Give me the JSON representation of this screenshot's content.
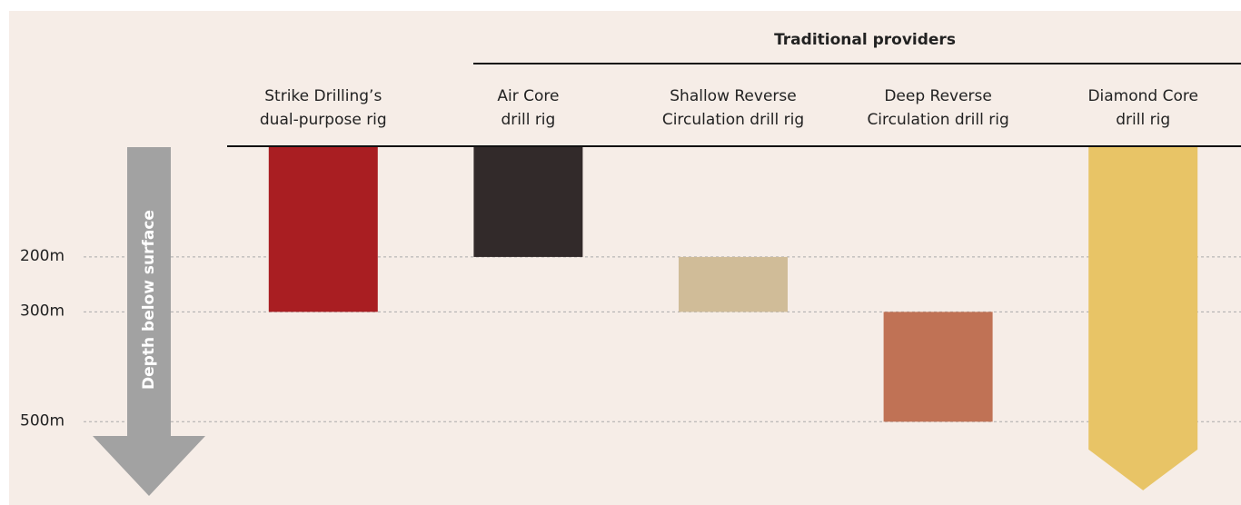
{
  "chart_data": {
    "type": "floating-bar",
    "header": "Traditional providers",
    "y_label": "Depth below surface",
    "categories": [
      [
        "Strike Drilling’s",
        "dual-purpose rig"
      ],
      [
        "Air Core",
        "drill rig"
      ],
      [
        "Shallow Reverse",
        "Circulation drill rig"
      ],
      [
        "Deep Reverse",
        "Circulation drill rig"
      ],
      [
        "Diamond Core",
        "drill rig"
      ]
    ],
    "values": [
      [
        0,
        300
      ],
      [
        0,
        200
      ],
      [
        200,
        300
      ],
      [
        300,
        500
      ],
      [
        0,
        625
      ]
    ],
    "colors": [
      "#a91e22",
      "#322a2a",
      "#d0bc98",
      "#c07255",
      "#e8c466"
    ],
    "open_ended": [
      false,
      false,
      false,
      false,
      true
    ],
    "ylim": [
      0,
      650
    ],
    "yticks": [
      {
        "value": 200,
        "label": "200m"
      },
      {
        "value": 300,
        "label": "300m"
      },
      {
        "value": 500,
        "label": "500m"
      }
    ],
    "grid": true,
    "y_inverted": true
  }
}
